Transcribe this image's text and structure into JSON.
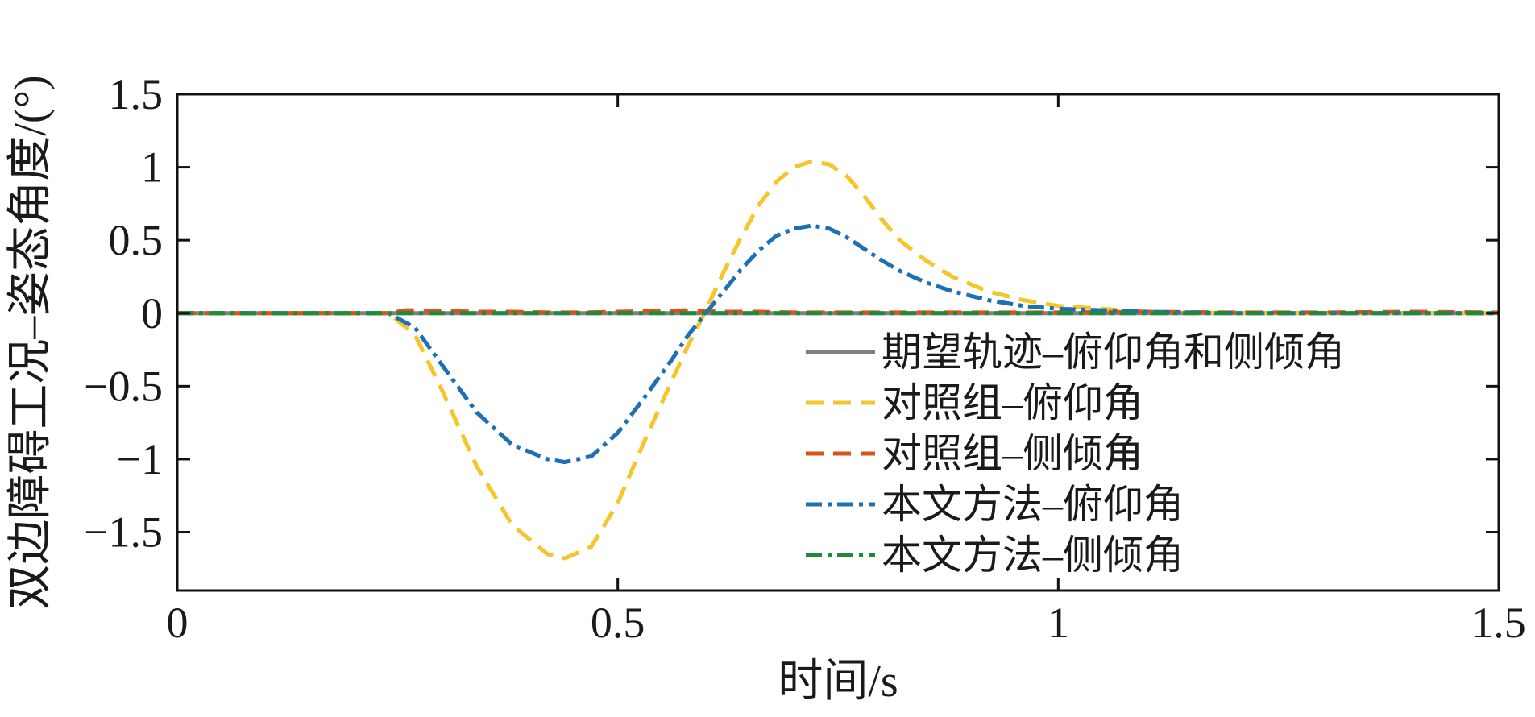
{
  "chart_data": {
    "type": "line",
    "xlabel": "时间/s",
    "ylabel": "双边障碍工况–姿态角度/(°)",
    "xlim": [
      0,
      1.5
    ],
    "ylim": [
      -1.9,
      1.5
    ],
    "x_ticks": [
      0,
      0.5,
      1,
      1.5
    ],
    "x_tick_labels": [
      "0",
      "0.5",
      "1",
      "1.5"
    ],
    "y_ticks": [
      1.5,
      1,
      0.5,
      0,
      -0.5,
      -1,
      -1.5
    ],
    "y_tick_labels": [
      "1.5",
      "1",
      "0.5",
      "0",
      "−0.5",
      "−1",
      "−1.5"
    ],
    "grid": false,
    "legend_position": "lower-right",
    "series": [
      {
        "name": "期望轨迹–俯仰角和侧倾角",
        "color": "#7f7f7f",
        "style": "solid",
        "x": [
          0,
          1.5
        ],
        "y": [
          0,
          0
        ]
      },
      {
        "name": "对照组–俯仰角",
        "color": "#f5c52a",
        "style": "dashed",
        "x": [
          0,
          0.2,
          0.24,
          0.27,
          0.3,
          0.34,
          0.38,
          0.42,
          0.44,
          0.47,
          0.5,
          0.53,
          0.56,
          0.58,
          0.6,
          0.62,
          0.64,
          0.66,
          0.68,
          0.7,
          0.72,
          0.74,
          0.76,
          0.78,
          0.8,
          0.82,
          0.85,
          0.88,
          0.92,
          0.96,
          1.0,
          1.05,
          1.1,
          1.2,
          1.3,
          1.5
        ],
        "y": [
          0,
          0,
          0,
          -0.15,
          -0.52,
          -1.05,
          -1.45,
          -1.65,
          -1.68,
          -1.6,
          -1.3,
          -0.88,
          -0.48,
          -0.22,
          0.02,
          0.28,
          0.52,
          0.74,
          0.9,
          1.0,
          1.04,
          1.02,
          0.94,
          0.8,
          0.64,
          0.5,
          0.36,
          0.25,
          0.15,
          0.09,
          0.05,
          0.03,
          0.01,
          0,
          0,
          0
        ]
      },
      {
        "name": "对照组–侧倾角",
        "color": "#d95319",
        "style": "dashed",
        "x": [
          0,
          0.24,
          0.26,
          0.3,
          0.34,
          0.38,
          0.42,
          0.46,
          0.5,
          0.54,
          0.58,
          0.62,
          0.66,
          0.7,
          0.75,
          0.8,
          0.85,
          0.9,
          1.0,
          1.1,
          1.2,
          1.3,
          1.4,
          1.5
        ],
        "y": [
          0,
          0,
          0.02,
          0.015,
          0.01,
          0.01,
          0.005,
          0.005,
          0.01,
          0.015,
          0.02,
          0.01,
          0.01,
          0.005,
          0.005,
          0.005,
          0.005,
          0.005,
          0.005,
          0.01,
          0.005,
          0.005,
          0.01,
          0.005
        ]
      },
      {
        "name": "本文方法–俯仰角",
        "color": "#1f6fb5",
        "style": "dash-dot",
        "x": [
          0,
          0.2,
          0.24,
          0.27,
          0.3,
          0.34,
          0.38,
          0.42,
          0.44,
          0.47,
          0.5,
          0.53,
          0.56,
          0.58,
          0.6,
          0.62,
          0.64,
          0.66,
          0.68,
          0.7,
          0.72,
          0.74,
          0.76,
          0.78,
          0.8,
          0.82,
          0.85,
          0.88,
          0.92,
          0.96,
          1.0,
          1.05,
          1.1,
          1.2,
          1.3,
          1.5
        ],
        "y": [
          0,
          0,
          0,
          -0.1,
          -0.35,
          -0.68,
          -0.9,
          -1.0,
          -1.02,
          -0.98,
          -0.82,
          -0.58,
          -0.33,
          -0.15,
          0,
          0.15,
          0.3,
          0.43,
          0.53,
          0.58,
          0.6,
          0.58,
          0.52,
          0.44,
          0.36,
          0.29,
          0.21,
          0.15,
          0.09,
          0.05,
          0.03,
          0.02,
          0.01,
          0,
          0,
          0
        ]
      },
      {
        "name": "本文方法–侧倾角",
        "color": "#1e8a3a",
        "style": "dash-dot",
        "x": [
          0,
          1.5
        ],
        "y": [
          0,
          0
        ]
      }
    ]
  }
}
